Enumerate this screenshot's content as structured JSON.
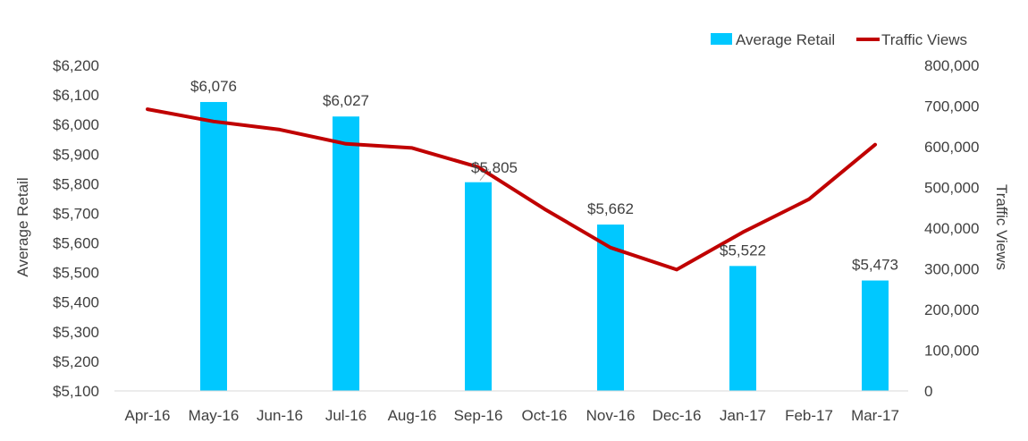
{
  "chart_data": {
    "type": "bar",
    "title": "",
    "categories": [
      "Apr-16",
      "May-16",
      "Jun-16",
      "Jul-16",
      "Aug-16",
      "Sep-16",
      "Oct-16",
      "Nov-16",
      "Dec-16",
      "Jan-17",
      "Feb-17",
      "Mar-17"
    ],
    "series": [
      {
        "name": "Average Retail",
        "type": "bar",
        "axis": "left",
        "color": "#00C8FF",
        "values": [
          null,
          6076,
          null,
          6027,
          null,
          5805,
          null,
          5662,
          null,
          5522,
          null,
          5473
        ],
        "labels": [
          null,
          "$6,076",
          null,
          "$6,027",
          null,
          "$5,805",
          null,
          "$5,662",
          null,
          "$5,522",
          null,
          "$5,473"
        ]
      },
      {
        "name": "Traffic Views",
        "type": "line",
        "axis": "right",
        "color": "#C00000",
        "values": [
          692000,
          662000,
          642000,
          607000,
          597000,
          550000,
          447000,
          352000,
          298000,
          390000,
          471000,
          605000
        ]
      }
    ],
    "ylabel": "Average Retail",
    "y2label": "Traffic Views",
    "ylim": [
      5100,
      6200
    ],
    "ytick_labels": [
      "$5,100",
      "$5,200",
      "$5,300",
      "$5,400",
      "$5,500",
      "$5,600",
      "$5,700",
      "$5,800",
      "$5,900",
      "$6,000",
      "$6,100",
      "$6,200"
    ],
    "y2lim": [
      0,
      800000
    ],
    "y2tick_labels": [
      "0",
      "100,000",
      "200,000",
      "300,000",
      "400,000",
      "500,000",
      "600,000",
      "700,000",
      "800,000"
    ],
    "grid": false,
    "legend_position": "top-right"
  }
}
